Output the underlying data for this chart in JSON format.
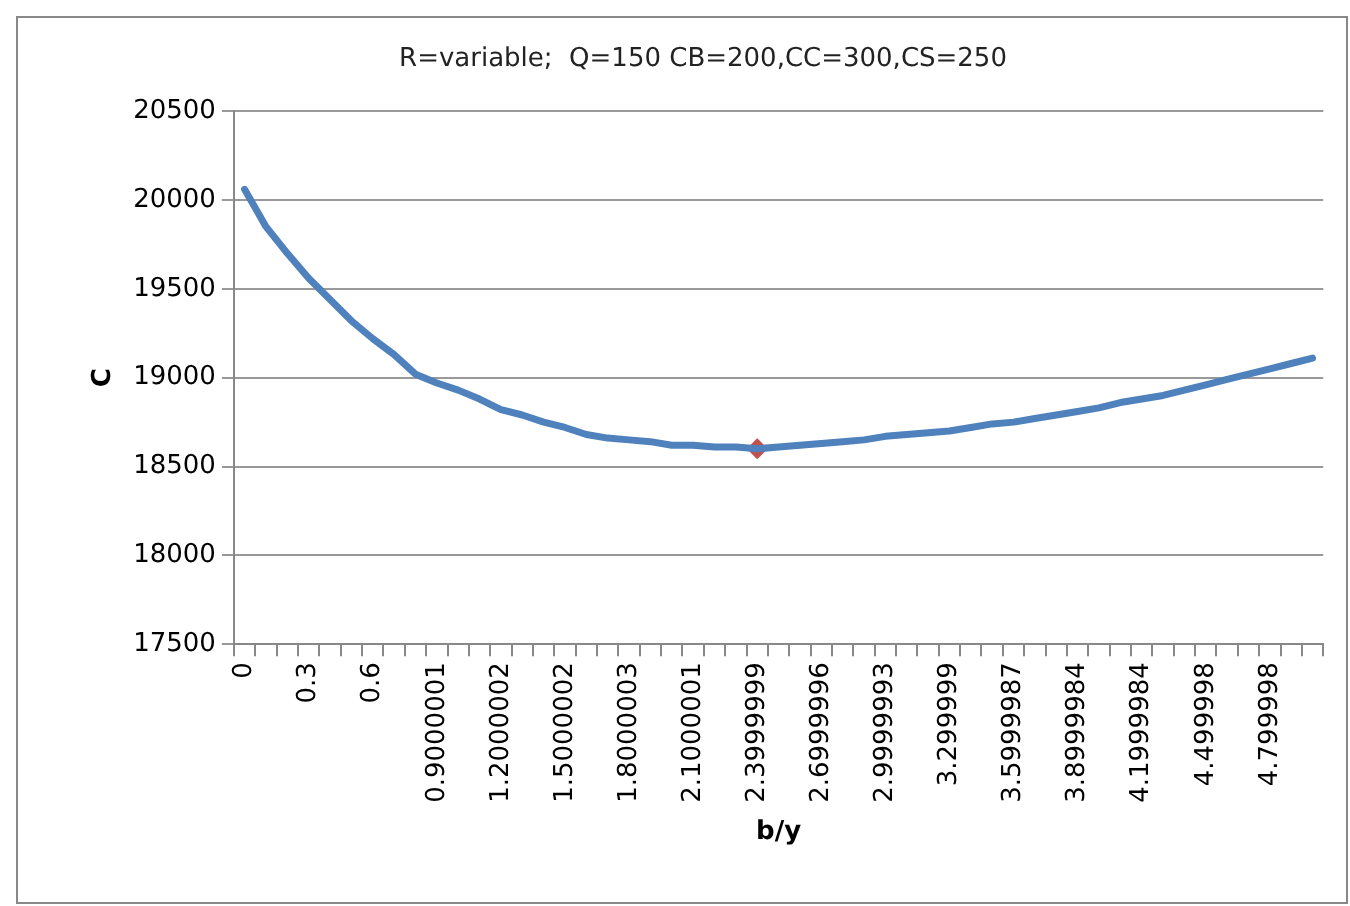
{
  "chart_data": {
    "type": "line",
    "title": "R=variable;  Q=150 CB=200,CC=300,CS=250",
    "xlabel": "b/y",
    "ylabel": "C",
    "categories": [
      "0",
      null,
      null,
      "0.3",
      null,
      null,
      "0.6",
      null,
      null,
      "0.9000001",
      null,
      null,
      "1.2000002",
      null,
      null,
      "1.5000002",
      null,
      null,
      "1.8000003",
      null,
      null,
      "2.1000001",
      null,
      null,
      "2.3999999",
      null,
      null,
      "2.6999996",
      null,
      null,
      "2.9999993",
      null,
      null,
      "3.299999",
      null,
      null,
      "3.5999987",
      null,
      null,
      "3.8999984",
      null,
      null,
      "4.1999984",
      null,
      null,
      "4.499998",
      null,
      null,
      "4.799998",
      null,
      null
    ],
    "series": [
      {
        "color": "#4f81bd",
        "marker": "none",
        "values": [
          20060,
          19850,
          19700,
          19560,
          19440,
          19320,
          19220,
          19130,
          19020,
          18970,
          18930,
          18880,
          18820,
          18790,
          18750,
          18720,
          18680,
          18660,
          18650,
          18640,
          18620,
          18620,
          18610,
          18610,
          18600,
          18610,
          18620,
          18630,
          18640,
          18650,
          18670,
          18680,
          18690,
          18700,
          18720,
          18740,
          18750,
          18770,
          18790,
          18810,
          18830,
          18860,
          18880,
          18900,
          18930,
          18960,
          18990,
          19020,
          19050,
          19080,
          19110
        ]
      },
      {
        "type": "scatter",
        "color": "#c0504d",
        "marker": "diamond",
        "x": [
          "2.3999999"
        ],
        "values": [
          18600
        ]
      }
    ],
    "ylim": [
      17500,
      20500
    ],
    "yticks": [
      17500,
      18000,
      18500,
      19000,
      19500,
      20000,
      20500
    ],
    "grid": "y",
    "legend": false
  }
}
